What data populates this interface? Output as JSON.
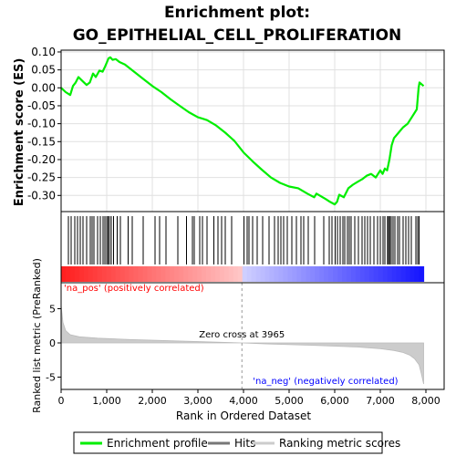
{
  "chart_data": {
    "type": "line",
    "title_line1": "Enrichment plot:",
    "title_line2": "GO_EPITHELIAL_CELL_PROLIFERATION",
    "es_panel": {
      "ylabel": "Enrichment score (ES)",
      "ylim": [
        -0.345,
        0.105
      ],
      "yticks": [
        "0.10",
        "0.05",
        "0.00",
        "-0.05",
        "-0.10",
        "-0.15",
        "-0.20",
        "-0.25",
        "-0.30"
      ],
      "ytick_values": [
        0.1,
        0.05,
        0.0,
        -0.05,
        -0.1,
        -0.15,
        -0.2,
        -0.25,
        -0.3
      ],
      "grid": true,
      "line_color": "#00ee00",
      "series": [
        {
          "x": [
            0,
            100,
            200,
            260,
            320,
            380,
            460,
            560,
            630,
            700,
            760,
            840,
            910,
            960,
            1000,
            1040,
            1080,
            1130,
            1200,
            1280,
            1400,
            1600,
            1800,
            2000,
            2200,
            2400,
            2600,
            2800,
            3000,
            3100,
            3200,
            3400,
            3600,
            3800,
            4000,
            4200,
            4400,
            4600,
            4800,
            5000,
            5200,
            5400,
            5550,
            5600,
            5800,
            5900,
            6000,
            6050,
            6100,
            6200,
            6300,
            6400,
            6500,
            6600,
            6700,
            6800,
            6900,
            7000,
            7050,
            7100,
            7150,
            7200,
            7250,
            7300,
            7400,
            7500,
            7600,
            7700,
            7800,
            7840,
            7860,
            7950
          ],
          "y": [
            0.0,
            -0.012,
            -0.02,
            0.005,
            0.015,
            0.03,
            0.02,
            0.008,
            0.015,
            0.04,
            0.03,
            0.048,
            0.045,
            0.058,
            0.07,
            0.082,
            0.085,
            0.078,
            0.08,
            0.072,
            0.065,
            0.045,
            0.025,
            0.005,
            -0.012,
            -0.032,
            -0.05,
            -0.068,
            -0.082,
            -0.086,
            -0.09,
            -0.105,
            -0.125,
            -0.148,
            -0.18,
            -0.205,
            -0.228,
            -0.25,
            -0.265,
            -0.275,
            -0.28,
            -0.295,
            -0.305,
            -0.295,
            -0.31,
            -0.318,
            -0.325,
            -0.318,
            -0.298,
            -0.305,
            -0.28,
            -0.27,
            -0.262,
            -0.255,
            -0.245,
            -0.24,
            -0.25,
            -0.23,
            -0.24,
            -0.225,
            -0.23,
            -0.2,
            -0.16,
            -0.14,
            -0.125,
            -0.11,
            -0.1,
            -0.08,
            -0.06,
            0.0,
            0.015,
            0.005
          ]
        }
      ]
    },
    "hits_panel": {
      "label": "Hits",
      "hit_positions": [
        160,
        220,
        300,
        360,
        420,
        480,
        560,
        640,
        680,
        720,
        800,
        860,
        920,
        960,
        1000,
        1030,
        1060,
        1100,
        1150,
        1230,
        1300,
        1470,
        1560,
        1800,
        2060,
        2160,
        2300,
        2560,
        2750,
        2880,
        2920,
        3040,
        3100,
        3200,
        3350,
        3440,
        3520,
        3600,
        3740,
        4010,
        4080,
        4120,
        4200,
        4300,
        4420,
        4560,
        4680,
        4760,
        4820,
        4880,
        4960,
        5060,
        5160,
        5260,
        5320,
        5420,
        5560,
        5760,
        5880,
        5940,
        6010,
        6060,
        6120,
        6180,
        6220,
        6280,
        6320,
        6360,
        6440,
        6520,
        6600,
        6660,
        6720,
        6780,
        6860,
        6940,
        7000,
        7060,
        7100,
        7160,
        7180,
        7210,
        7240,
        7280,
        7320,
        7380,
        7420,
        7500,
        7560,
        7620,
        7680,
        7780,
        7820,
        7850
      ]
    },
    "metric_panel": {
      "ylabel": "Ranked list metric (PreRanked)",
      "xlabel": "Rank in Ordered Dataset",
      "xlim": [
        0,
        8400
      ],
      "ylim": [
        -6.8,
        8.8
      ],
      "xticks": [
        "0",
        "1,000",
        "2,000",
        "3,000",
        "4,000",
        "5,000",
        "6,000",
        "7,000",
        "8,000"
      ],
      "xtick_values": [
        0,
        1000,
        2000,
        3000,
        4000,
        5000,
        6000,
        7000,
        8000
      ],
      "yticks": [
        "5",
        "0",
        "-5"
      ],
      "ytick_values": [
        5,
        0,
        -5
      ],
      "zero_cross_label": "Zero cross at 3965",
      "zero_cross": 3965,
      "pos_label": "'na_pos' (positively correlated)",
      "neg_label": "'na_neg' (negatively correlated)",
      "pos_color": "#ff0000",
      "neg_color": "#0000ff",
      "metric_profile": {
        "x": [
          0,
          40,
          100,
          200,
          400,
          800,
          1500,
          2500,
          3500,
          3965,
          4500,
          5500,
          6500,
          7000,
          7300,
          7500,
          7650,
          7750,
          7850,
          7900,
          7950
        ],
        "y": [
          5.5,
          3.0,
          1.8,
          1.2,
          0.9,
          0.7,
          0.5,
          0.3,
          0.1,
          0.0,
          -0.15,
          -0.35,
          -0.6,
          -0.85,
          -1.1,
          -1.4,
          -1.8,
          -2.3,
          -3.2,
          -4.5,
          -6.0
        ]
      }
    },
    "legend": {
      "items": [
        "Enrichment profile",
        "Hits",
        "Ranking metric scores"
      ],
      "colors": [
        "#00ee00",
        "#777777",
        "#cccccc"
      ]
    }
  }
}
